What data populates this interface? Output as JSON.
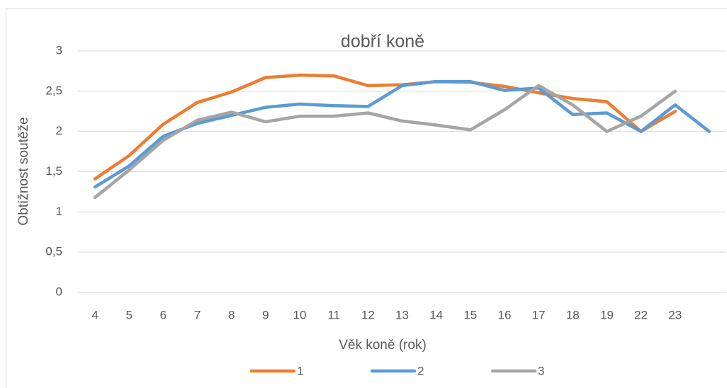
{
  "chart_data": {
    "type": "line",
    "title": "dobří koně",
    "x_label": "Věk koně (rok)",
    "y_label": "Obtížnost soutěže",
    "categories": [
      "4",
      "5",
      "6",
      "7",
      "8",
      "9",
      "10",
      "11",
      "12",
      "13",
      "14",
      "15",
      "16",
      "17",
      "18",
      "19",
      "22",
      "23",
      null
    ],
    "series": [
      {
        "name": "1",
        "color": "#ed7d31",
        "values": [
          1.41,
          1.7,
          2.09,
          2.36,
          2.49,
          2.67,
          2.7,
          2.69,
          2.57,
          2.58,
          2.62,
          2.61,
          2.56,
          2.48,
          2.41,
          2.37,
          2.0,
          2.25,
          null
        ]
      },
      {
        "name": "2",
        "color": "#5b9bd5",
        "values": [
          1.31,
          1.57,
          1.94,
          2.1,
          2.2,
          2.3,
          2.34,
          2.32,
          2.31,
          2.57,
          2.62,
          2.62,
          2.51,
          2.54,
          2.21,
          2.23,
          2.0,
          2.33,
          2.0
        ]
      },
      {
        "name": "3",
        "color": "#a5a5a5",
        "values": [
          1.18,
          1.52,
          1.89,
          2.14,
          2.24,
          2.12,
          2.19,
          2.19,
          2.23,
          2.13,
          2.08,
          2.02,
          2.27,
          2.57,
          2.33,
          2.0,
          2.19,
          2.5,
          null
        ]
      }
    ],
    "ylim": [
      0,
      3
    ],
    "yticks": [
      0,
      {
        "value": 0.5,
        "label": "0,5"
      },
      1,
      {
        "value": 1.5,
        "label": "1,5"
      },
      2,
      {
        "value": 2.5,
        "label": "2,5"
      },
      3
    ],
    "grid": true,
    "legend": "bottom"
  }
}
